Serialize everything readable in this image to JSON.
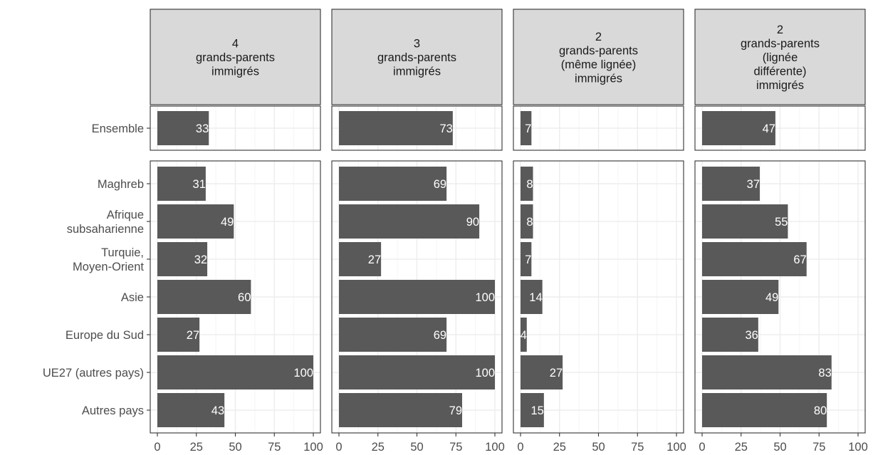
{
  "chart_data": {
    "type": "bar",
    "orientation": "horizontal",
    "facets": [
      {
        "title_lines": [
          "4",
          "grands-parents",
          "immigrés"
        ]
      },
      {
        "title_lines": [
          "3",
          "grands-parents",
          "immigrés"
        ]
      },
      {
        "title_lines": [
          "2",
          "grands-parents",
          "(même lignée)",
          "immigrés"
        ]
      },
      {
        "title_lines": [
          "2",
          "grands-parents",
          "(lignée",
          "différente)",
          "immigrés"
        ]
      }
    ],
    "row_groups": [
      {
        "categories": [
          {
            "lines": [
              "Ensemble"
            ]
          }
        ]
      },
      {
        "categories": [
          {
            "lines": [
              "Maghreb"
            ]
          },
          {
            "lines": [
              "Afrique",
              "subsaharienne"
            ]
          },
          {
            "lines": [
              "Turquie,",
              "Moyen-Orient"
            ]
          },
          {
            "lines": [
              "Asie"
            ]
          },
          {
            "lines": [
              "Europe du Sud"
            ]
          },
          {
            "lines": [
              "UE27 (autres pays)"
            ]
          },
          {
            "lines": [
              "Autres pays"
            ]
          }
        ]
      }
    ],
    "series": [
      {
        "values": [
          [
            33
          ],
          [
            31,
            49,
            32,
            60,
            27,
            100,
            43
          ]
        ]
      },
      {
        "values": [
          [
            73
          ],
          [
            69,
            90,
            27,
            100,
            69,
            100,
            79
          ]
        ]
      },
      {
        "values": [
          [
            7
          ],
          [
            8,
            8,
            7,
            14,
            4,
            27,
            15
          ]
        ]
      },
      {
        "values": [
          [
            47
          ],
          [
            37,
            55,
            67,
            49,
            36,
            83,
            80
          ]
        ]
      }
    ],
    "xlim": [
      0,
      100
    ],
    "xticks": [
      "0",
      "25",
      "50",
      "75",
      "100"
    ],
    "xlabel": "",
    "ylabel": "",
    "grid": true,
    "colors": {
      "bar": "#595959",
      "bar_label": "#ffffff",
      "strip_fill": "#d9d9d9",
      "panel_border": "#333333",
      "grid_major": "#ebebeb",
      "grid_minor": "#f5f5f5",
      "axis_text": "#4d4d4d"
    }
  }
}
